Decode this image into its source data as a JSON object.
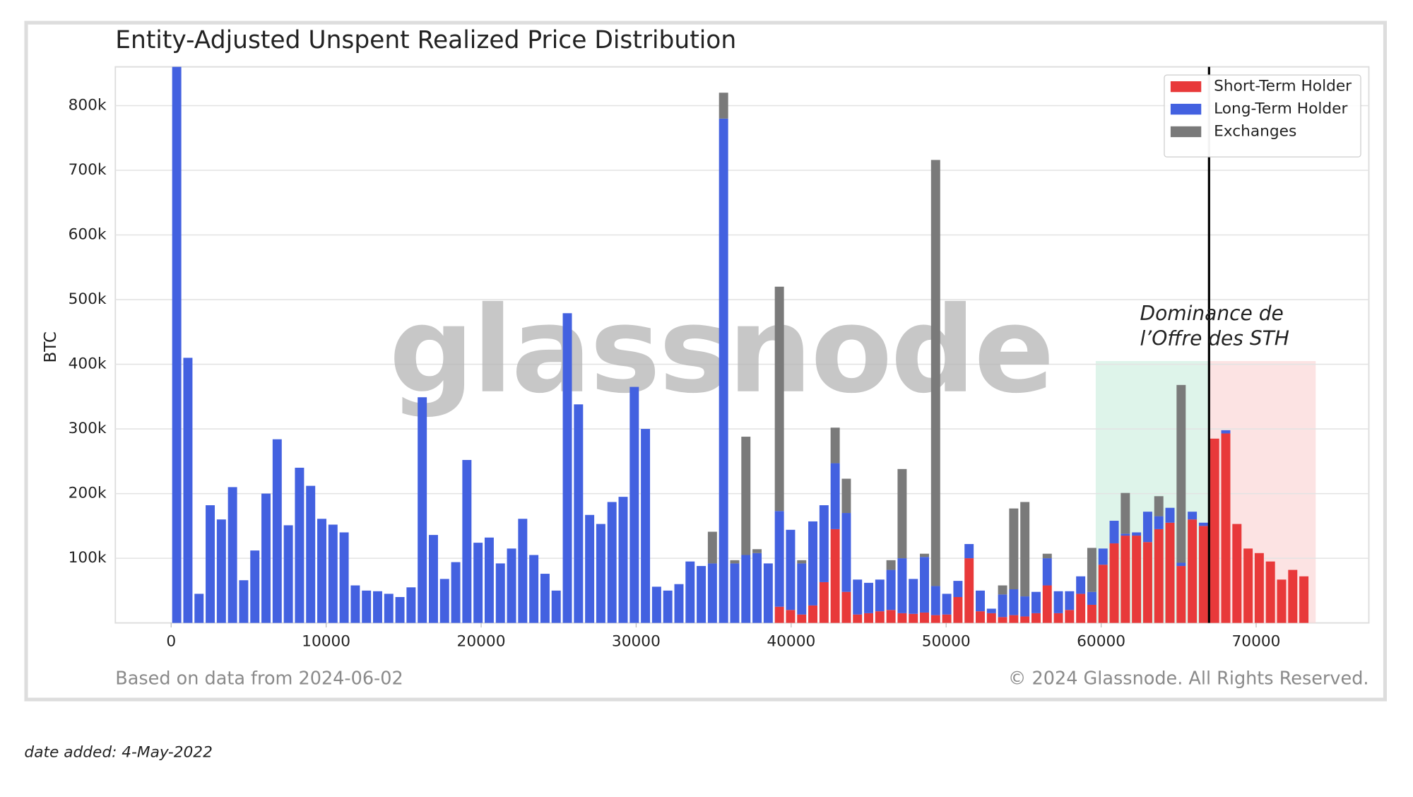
{
  "chart_data": {
    "type": "stacked_bar",
    "title": "Entity-Adjusted Unspent Realized Price Distribution",
    "y_label": "BTC",
    "watermark": "glassnode",
    "source_note": "Based on data from 2024-06-02",
    "copyright": "© 2024 Glassnode. All Rights Reserved.",
    "date_added": "date added: 4-May-2022",
    "annotation": [
      "Dominance de",
      "l’Offre des STH"
    ],
    "vline": 66960,
    "shaded_regions": [
      {
        "x": [
          59650,
          66960
        ],
        "ymax": 405000,
        "color": "#d3f0e3"
      },
      {
        "x": [
          66960,
          73840
        ],
        "ymax": 405000,
        "color": "#fbdada"
      }
    ],
    "legend": "upper right",
    "grid": true,
    "xlim": [
      -3600,
      77270
    ],
    "ylim": [
      0,
      860000
    ],
    "xticks": [
      0,
      10000,
      20000,
      30000,
      40000,
      50000,
      60000,
      70000
    ],
    "yticks": [
      {
        "value": 100000,
        "label": "100k"
      },
      {
        "value": 200000,
        "label": "200k"
      },
      {
        "value": 300000,
        "label": "300k"
      },
      {
        "value": 400000,
        "label": "400k"
      },
      {
        "value": 500000,
        "label": "500k"
      },
      {
        "value": 600000,
        "label": "600k"
      },
      {
        "value": 700000,
        "label": "700k"
      },
      {
        "value": 800000,
        "label": "800k"
      }
    ],
    "x": [
      360,
      1080,
      1800,
      2520,
      3240,
      3960,
      4680,
      5400,
      6120,
      6840,
      7560,
      8280,
      9000,
      9720,
      10440,
      11160,
      11880,
      12600,
      13320,
      14040,
      14760,
      15480,
      16200,
      16920,
      17640,
      18360,
      19080,
      19800,
      20520,
      21240,
      21960,
      22680,
      23400,
      24120,
      24840,
      25560,
      26280,
      27000,
      27720,
      28440,
      29160,
      29880,
      30600,
      31320,
      32040,
      32760,
      33480,
      34200,
      34920,
      35640,
      36360,
      37080,
      37800,
      38520,
      39240,
      39960,
      40680,
      41400,
      42120,
      42840,
      43560,
      44280,
      45000,
      45720,
      46440,
      47160,
      47880,
      48600,
      49320,
      50040,
      50760,
      51480,
      52200,
      52920,
      53640,
      54360,
      55080,
      55800,
      56520,
      57240,
      57960,
      58680,
      59400,
      60120,
      60840,
      61560,
      62280,
      63000,
      63720,
      64440,
      65160,
      65880,
      66600,
      67320,
      68040,
      68760,
      69480,
      70200,
      70920,
      71640,
      72360,
      73080
    ],
    "series": [
      {
        "name": "Short-Term Holder",
        "color": "#e8393a",
        "values": [
          0,
          0,
          0,
          0,
          0,
          0,
          0,
          0,
          0,
          0,
          0,
          0,
          0,
          0,
          0,
          0,
          0,
          0,
          0,
          0,
          0,
          0,
          0,
          0,
          0,
          0,
          0,
          0,
          0,
          0,
          0,
          0,
          0,
          0,
          0,
          0,
          0,
          0,
          0,
          0,
          0,
          0,
          0,
          0,
          0,
          0,
          0,
          0,
          0,
          0,
          0,
          0,
          0,
          0,
          25000,
          20000,
          13000,
          27000,
          63000,
          145000,
          48000,
          13000,
          15000,
          18000,
          20000,
          15000,
          14000,
          16000,
          12000,
          13000,
          40000,
          100000,
          18000,
          15000,
          9000,
          12000,
          10000,
          15000,
          58000,
          15000,
          20000,
          45000,
          28000,
          90000,
          123000,
          135000,
          135000,
          125000,
          145000,
          155000,
          88000,
          160000,
          150000,
          285000,
          293000,
          153000,
          115000,
          108000,
          95000,
          67000,
          82000,
          72000
        ]
      },
      {
        "name": "Long-Term Holder",
        "color": "#4361e0",
        "values": [
          860000,
          410000,
          45000,
          182000,
          160000,
          210000,
          66000,
          112000,
          200000,
          284000,
          151000,
          240000,
          212000,
          161000,
          152000,
          140000,
          58000,
          50000,
          49000,
          45000,
          40000,
          55000,
          349000,
          136000,
          68000,
          94000,
          252000,
          124000,
          132000,
          92000,
          115000,
          161000,
          105000,
          76000,
          50000,
          479000,
          338000,
          167000,
          153000,
          187000,
          195000,
          365000,
          300000,
          56000,
          50000,
          60000,
          95000,
          88000,
          92000,
          780000,
          92000,
          105000,
          108000,
          92000,
          148000,
          124000,
          79000,
          130000,
          119000,
          102000,
          122000,
          54000,
          47000,
          49000,
          62000,
          85000,
          54000,
          86000,
          45000,
          32000,
          25000,
          22000,
          32000,
          7000,
          35000,
          40000,
          31000,
          33000,
          42000,
          34000,
          29000,
          27000,
          20000,
          25000,
          35000,
          3000,
          5000,
          47000,
          20000,
          23000,
          5000,
          12000,
          5000,
          0,
          5000,
          0,
          0,
          0,
          0,
          0,
          0,
          0
        ]
      },
      {
        "name": "Exchanges",
        "color": "#7a7a7a",
        "values": [
          0,
          0,
          0,
          0,
          0,
          0,
          0,
          0,
          0,
          0,
          0,
          0,
          0,
          0,
          0,
          0,
          0,
          0,
          0,
          0,
          0,
          0,
          0,
          0,
          0,
          0,
          0,
          0,
          0,
          0,
          0,
          0,
          0,
          0,
          0,
          0,
          0,
          0,
          0,
          0,
          0,
          0,
          0,
          0,
          0,
          0,
          0,
          0,
          49000,
          40000,
          5000,
          183000,
          6000,
          0,
          347000,
          0,
          5000,
          0,
          0,
          55000,
          53000,
          0,
          0,
          0,
          15000,
          138000,
          0,
          5000,
          659000,
          0,
          0,
          0,
          0,
          0,
          14000,
          125000,
          146000,
          0,
          7000,
          0,
          0,
          0,
          68000,
          0,
          0,
          63000,
          0,
          0,
          31000,
          0,
          275000,
          0,
          0,
          0,
          0,
          0,
          0,
          0,
          0,
          0,
          0,
          0
        ]
      }
    ]
  }
}
